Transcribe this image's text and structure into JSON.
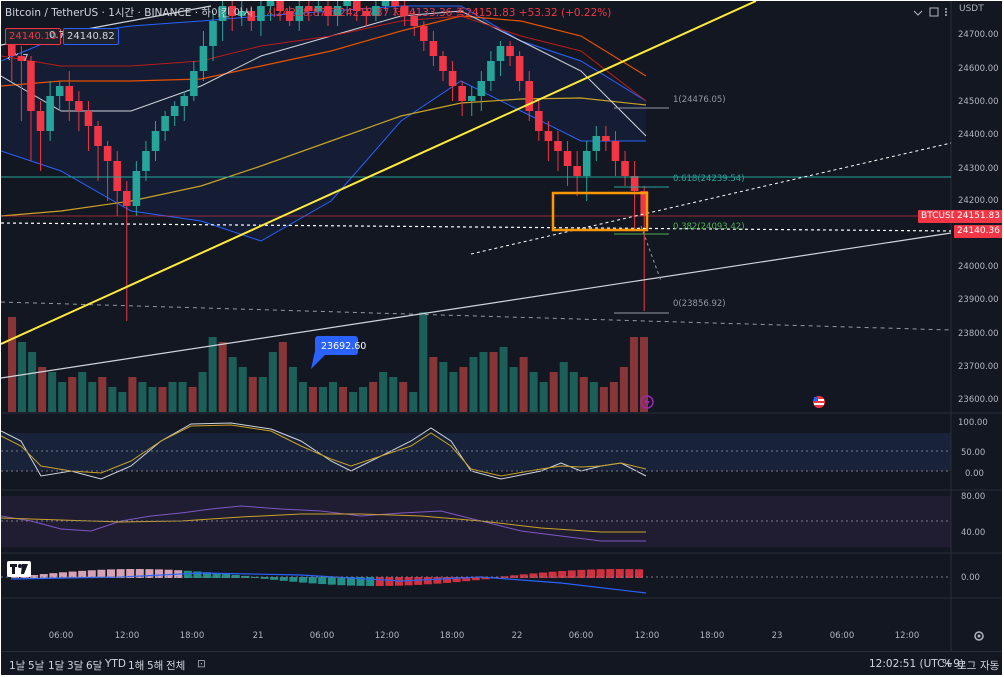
{
  "header": {
    "symbol_line": "Bitcoin / TetherUS · 1시간 · BINANCE · 하이킨 아시",
    "ohlc": "시24218.87 고24218.87 저24133.36 종24151.83 +53.32 (+0.22%)",
    "bid": "24140.10",
    "spread": "0.72",
    "ask": "24140.82"
  },
  "price_axis": {
    "currency": "USDT",
    "labels": [
      "24700.00",
      "24600.00",
      "24500.00",
      "24400.00",
      "24300.00",
      "24200.00",
      "24000.00",
      "23900.00",
      "23800.00",
      "23700.00",
      "23600.00"
    ],
    "symbol_tag": "BTCUSDT",
    "last_price": "24151.83",
    "dashed_price": "24140.36"
  },
  "fib": {
    "level_1": "1(24476.05)",
    "level_618": "0.618(24239.54)",
    "level_382": "0.382(24093.42)",
    "level_0": "0(23856.92)"
  },
  "price_callout": "23692.60",
  "stoch_axis": [
    "100.00",
    "50.00",
    "0.00"
  ],
  "rsi_axis": [
    "80.00",
    "40.00"
  ],
  "macd_axis": [
    "0.00"
  ],
  "time_axis": [
    "06:00",
    "12:00",
    "18:00",
    "21",
    "06:00",
    "12:00",
    "18:00",
    "22",
    "06:00",
    "12:00",
    "18:00",
    "23",
    "06:00",
    "12:00"
  ],
  "bottom_bar": {
    "ranges": [
      "1날",
      "5날",
      "1달",
      "3달",
      "6달",
      "YTD",
      "1해",
      "5해",
      "전체"
    ],
    "clock": "12:02:51 (UTC+9)",
    "percent": "%",
    "log": "로그",
    "auto": "자동"
  },
  "colors": {
    "up": "#26a69a",
    "down": "#f23645",
    "background": "#131722",
    "trendline": "#ffeb3b",
    "box": "#ff9800"
  }
}
